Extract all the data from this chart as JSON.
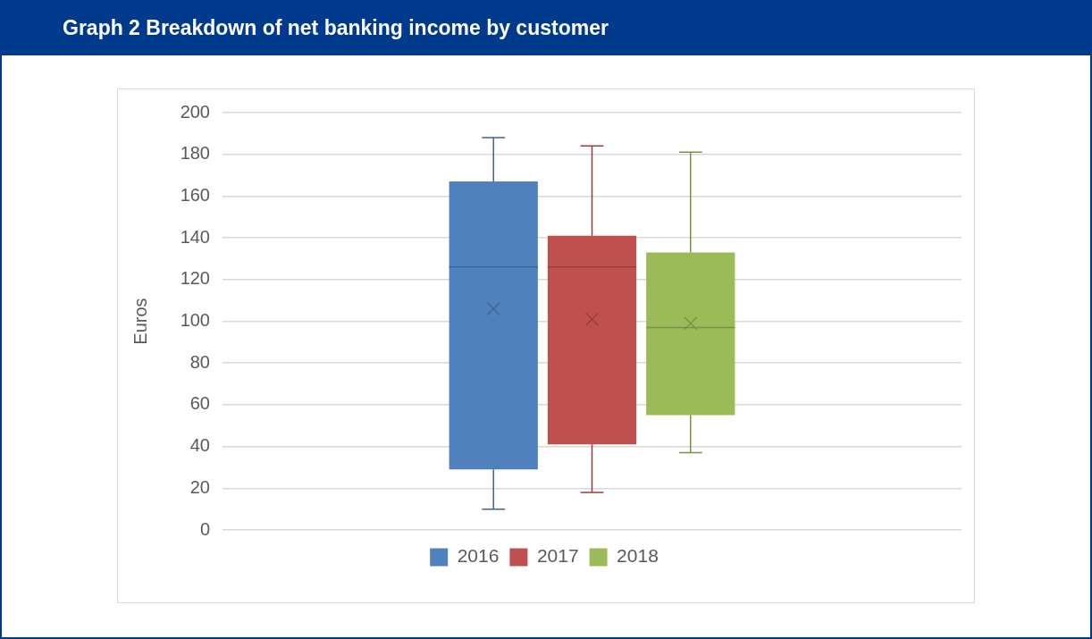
{
  "chart_data": {
    "type": "box",
    "title": "Graph 2 Breakdown of net banking income by customer",
    "ylabel": "Euros",
    "categories": [
      null
    ],
    "series": [
      {
        "name": "2016",
        "color": "#4f81bd",
        "boxes": [
          {
            "low": 10,
            "q1": 29,
            "median": 126,
            "q3": 167,
            "high": 188,
            "mean": 106
          }
        ]
      },
      {
        "name": "2017",
        "color": "#c0504d",
        "boxes": [
          {
            "low": 18,
            "q1": 41,
            "median": 126,
            "q3": 141,
            "high": 184,
            "mean": 101
          }
        ]
      },
      {
        "name": "2018",
        "color": "#9bbb59",
        "boxes": [
          {
            "low": 37,
            "q1": 55,
            "median": 97,
            "q3": 133,
            "high": 181,
            "mean": 99
          }
        ]
      }
    ],
    "ylim": [
      0,
      200
    ],
    "yticks": [
      0,
      20,
      40,
      60,
      80,
      100,
      120,
      140,
      160,
      180,
      200
    ],
    "grid": "y",
    "legend": "bottom",
    "marker": "cross"
  }
}
